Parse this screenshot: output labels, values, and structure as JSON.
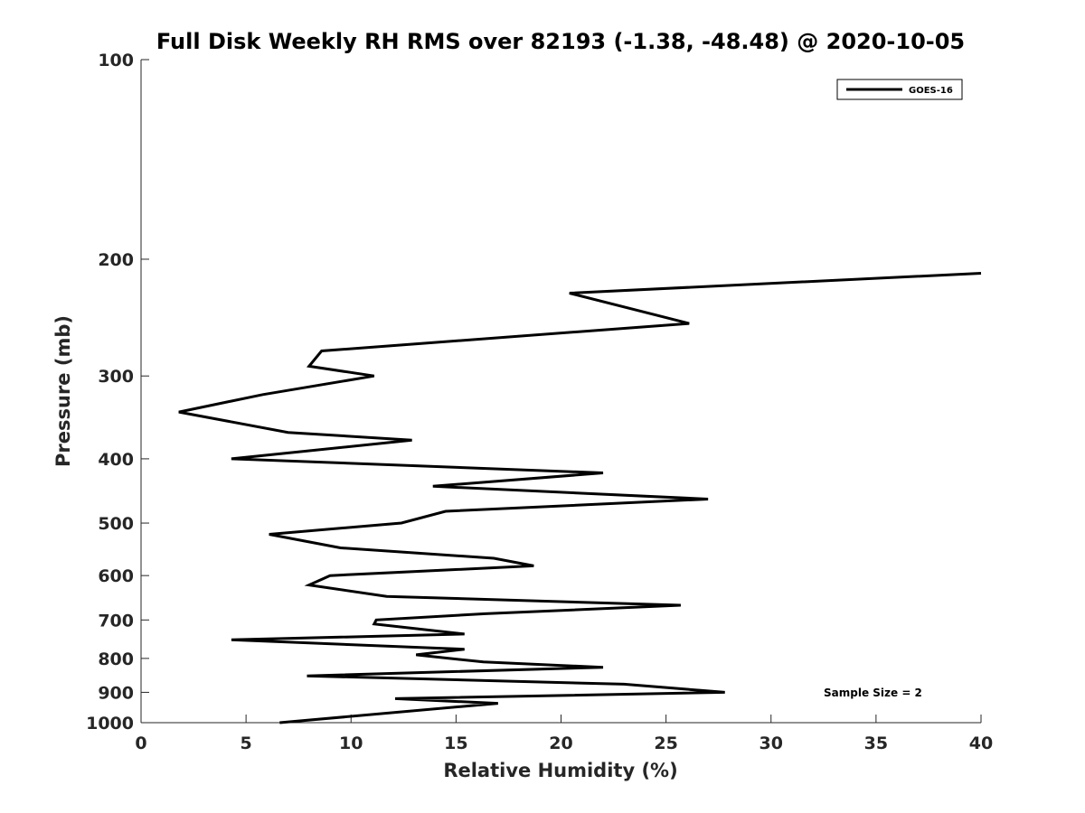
{
  "chart_data": {
    "type": "line",
    "title": "Full Disk Weekly RH RMS over 82193 (-1.38, -48.48) @ 2020-10-05",
    "xlabel": "Relative Humidity (%)",
    "ylabel": "Pressure (mb)",
    "xlim": [
      0,
      40
    ],
    "ylim": [
      100,
      1000
    ],
    "yscale": "log",
    "y_reversed": true,
    "xticks": [
      0,
      5,
      10,
      15,
      20,
      25,
      30,
      35,
      40
    ],
    "yticks": [
      100,
      200,
      300,
      400,
      500,
      600,
      700,
      800,
      900,
      1000
    ],
    "grid": false,
    "legend": {
      "placement": "top-right",
      "entries": [
        "GOES-16"
      ]
    },
    "annotation": "Sample Size = 2",
    "series": [
      {
        "name": "GOES-16",
        "color": "#000000",
        "points": [
          [
            40.0,
            210
          ],
          [
            20.4,
            225
          ],
          [
            26.1,
            250
          ],
          [
            8.6,
            275
          ],
          [
            8.0,
            290
          ],
          [
            11.1,
            300
          ],
          [
            5.8,
            320
          ],
          [
            1.8,
            340
          ],
          [
            7.0,
            365
          ],
          [
            12.9,
            375
          ],
          [
            4.3,
            400
          ],
          [
            22.0,
            420
          ],
          [
            13.9,
            440
          ],
          [
            27.0,
            460
          ],
          [
            14.5,
            480
          ],
          [
            12.4,
            500
          ],
          [
            6.1,
            520
          ],
          [
            9.5,
            545
          ],
          [
            16.8,
            565
          ],
          [
            18.7,
            580
          ],
          [
            9.0,
            600
          ],
          [
            8.0,
            620
          ],
          [
            11.7,
            645
          ],
          [
            25.7,
            665
          ],
          [
            16.4,
            685
          ],
          [
            11.2,
            700
          ],
          [
            11.1,
            710
          ],
          [
            15.4,
            735
          ],
          [
            4.3,
            750
          ],
          [
            15.4,
            775
          ],
          [
            13.1,
            790
          ],
          [
            16.3,
            810
          ],
          [
            22.0,
            825
          ],
          [
            7.9,
            850
          ],
          [
            23.0,
            875
          ],
          [
            27.8,
            900
          ],
          [
            12.1,
            920
          ],
          [
            17.0,
            935
          ],
          [
            6.6,
            1000
          ]
        ]
      }
    ]
  }
}
